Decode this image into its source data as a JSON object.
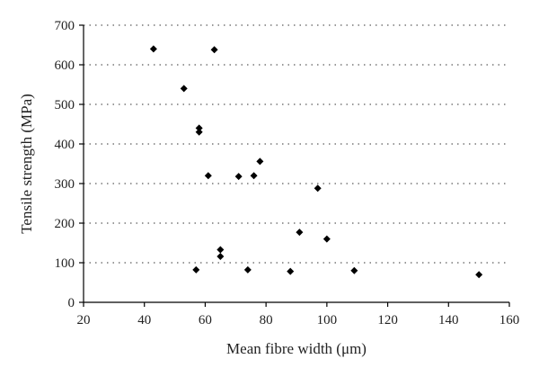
{
  "chart_data": {
    "type": "scatter",
    "title": "",
    "xlabel": "Mean fibre width (μm)",
    "ylabel": "Tensile strength (MPa)",
    "xlim": [
      20,
      160
    ],
    "ylim": [
      0,
      700
    ],
    "xticks": [
      20,
      40,
      60,
      80,
      100,
      120,
      140,
      160
    ],
    "yticks": [
      0,
      100,
      200,
      300,
      400,
      500,
      600,
      700
    ],
    "grid": "horizontal dotted",
    "marker": "diamond",
    "marker_color": "#000000",
    "points": [
      {
        "x": 43,
        "y": 640
      },
      {
        "x": 63,
        "y": 638
      },
      {
        "x": 53,
        "y": 540
      },
      {
        "x": 58,
        "y": 440
      },
      {
        "x": 58,
        "y": 430
      },
      {
        "x": 78,
        "y": 356
      },
      {
        "x": 61,
        "y": 320
      },
      {
        "x": 71,
        "y": 318
      },
      {
        "x": 76,
        "y": 320
      },
      {
        "x": 97,
        "y": 288
      },
      {
        "x": 91,
        "y": 177
      },
      {
        "x": 100,
        "y": 160
      },
      {
        "x": 65,
        "y": 133
      },
      {
        "x": 65,
        "y": 116
      },
      {
        "x": 57,
        "y": 82
      },
      {
        "x": 74,
        "y": 82
      },
      {
        "x": 88,
        "y": 78
      },
      {
        "x": 109,
        "y": 80
      },
      {
        "x": 150,
        "y": 70
      }
    ]
  }
}
